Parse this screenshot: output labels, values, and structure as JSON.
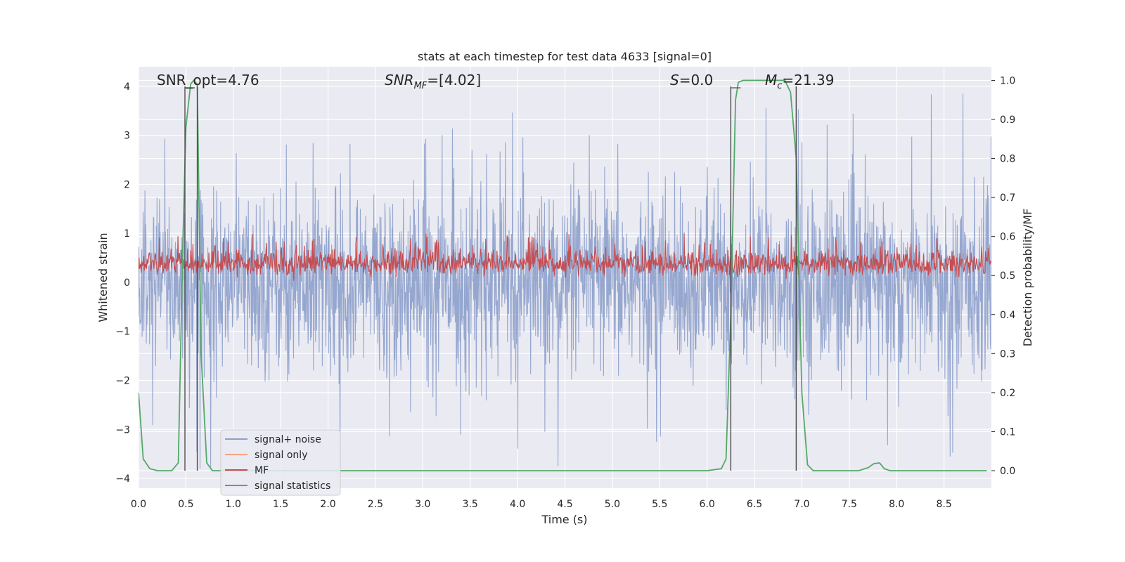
{
  "chart_data": {
    "type": "line",
    "title": "stats at each timestep for test data 4633 [signal=0]",
    "xlabel": "Time (s)",
    "ylabel_left": "Whitened strain",
    "ylabel_right": "Detection probability/MF",
    "xlim": [
      0.0,
      9.0
    ],
    "ylim_left": [
      -4.2,
      4.4
    ],
    "ylim_right": [
      -0.045,
      1.035
    ],
    "x_ticks": [
      "0.0",
      "0.5",
      "1.0",
      "1.5",
      "2.0",
      "2.5",
      "3.0",
      "3.5",
      "4.0",
      "4.5",
      "5.0",
      "5.5",
      "6.0",
      "6.5",
      "7.0",
      "7.5",
      "8.0",
      "8.5"
    ],
    "y_ticks_left": [
      "4",
      "3",
      "2",
      "1",
      "0",
      "−1",
      "−2",
      "−3",
      "−4"
    ],
    "y_ticks_right": [
      "1.0",
      "0.9",
      "0.8",
      "0.7",
      "0.6",
      "0.5",
      "0.4",
      "0.3",
      "0.2",
      "0.1",
      "0.0"
    ],
    "grid": true,
    "legend_placement": "lower-left",
    "annotations": {
      "snr_opt": "SNR_opt=4.76",
      "snr_mf_main": "SNR",
      "snr_mf_sub": "MF",
      "snr_mf_value": "=[4.02]",
      "s_main": "S",
      "s_value": "=0.0",
      "mc_main": "M",
      "mc_sub": "c",
      "mc_value": "=21.39"
    },
    "series": [
      {
        "name": "signal+ noise",
        "color": "#8da0cb",
        "axis": "left",
        "description_level": "noise band roughly between -1.7 and 1.7 with peaks to +/-4",
        "envelope": {
          "lower": -1.7,
          "upper": 1.7,
          "peak_min": -3.8,
          "peak_max": 4.0
        }
      },
      {
        "name": "signal only",
        "color": "#f4a582",
        "axis": "left",
        "values": []
      },
      {
        "name": "MF",
        "color": "#c44e52",
        "axis": "left",
        "envelope": {
          "lower": 0.0,
          "upper": 0.85,
          "peak_max": 1.0
        }
      },
      {
        "name": "signal statistics",
        "color": "#55a868",
        "axis": "right",
        "points": [
          [
            0.0,
            0.2
          ],
          [
            0.05,
            0.03
          ],
          [
            0.12,
            0.005
          ],
          [
            0.2,
            0.0
          ],
          [
            0.35,
            0.0
          ],
          [
            0.42,
            0.02
          ],
          [
            0.47,
            0.6
          ],
          [
            0.5,
            0.88
          ],
          [
            0.55,
            0.99
          ],
          [
            0.58,
            1.0
          ],
          [
            0.62,
            0.99
          ],
          [
            0.66,
            0.3
          ],
          [
            0.72,
            0.02
          ],
          [
            0.78,
            0.0
          ],
          [
            1.5,
            0.0
          ],
          [
            3.0,
            0.0
          ],
          [
            4.5,
            0.0
          ],
          [
            6.0,
            0.0
          ],
          [
            6.15,
            0.005
          ],
          [
            6.2,
            0.03
          ],
          [
            6.25,
            0.4
          ],
          [
            6.3,
            0.95
          ],
          [
            6.33,
            0.995
          ],
          [
            6.38,
            1.0
          ],
          [
            6.82,
            1.0
          ],
          [
            6.88,
            0.97
          ],
          [
            6.94,
            0.8
          ],
          [
            7.0,
            0.2
          ],
          [
            7.06,
            0.015
          ],
          [
            7.12,
            0.0
          ],
          [
            7.6,
            0.0
          ],
          [
            7.7,
            0.008
          ],
          [
            7.76,
            0.018
          ],
          [
            7.82,
            0.02
          ],
          [
            7.87,
            0.005
          ],
          [
            7.93,
            0.0
          ],
          [
            8.95,
            0.0
          ]
        ]
      }
    ],
    "vertical_lines_x": [
      0.49,
      0.62,
      6.25,
      6.94
    ]
  },
  "colors": {
    "axes_bg": "#eaeaf2",
    "grid": "#ffffff",
    "vline": "#4a4a4a"
  }
}
